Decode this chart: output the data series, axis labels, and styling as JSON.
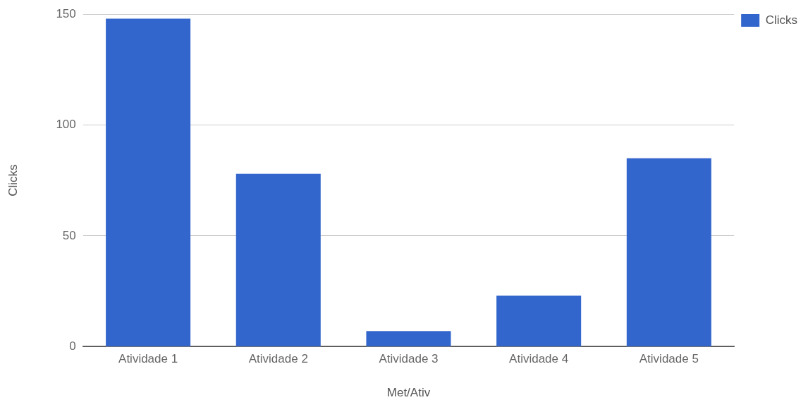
{
  "chart_data": {
    "type": "bar",
    "xlabel": "Met/Ativ",
    "ylabel": "Clicks",
    "categories": [
      "Atividade 1",
      "Atividade 2",
      "Atividade 3",
      "Atividade 4",
      "Atividade 5"
    ],
    "series": [
      {
        "name": "Clicks",
        "color": "#3366cc",
        "values": [
          148,
          78,
          7,
          23,
          85
        ]
      }
    ],
    "ylim": [
      0,
      150
    ],
    "yticks": [
      0,
      50,
      100,
      150
    ],
    "grid": "y",
    "legend": "top right"
  }
}
